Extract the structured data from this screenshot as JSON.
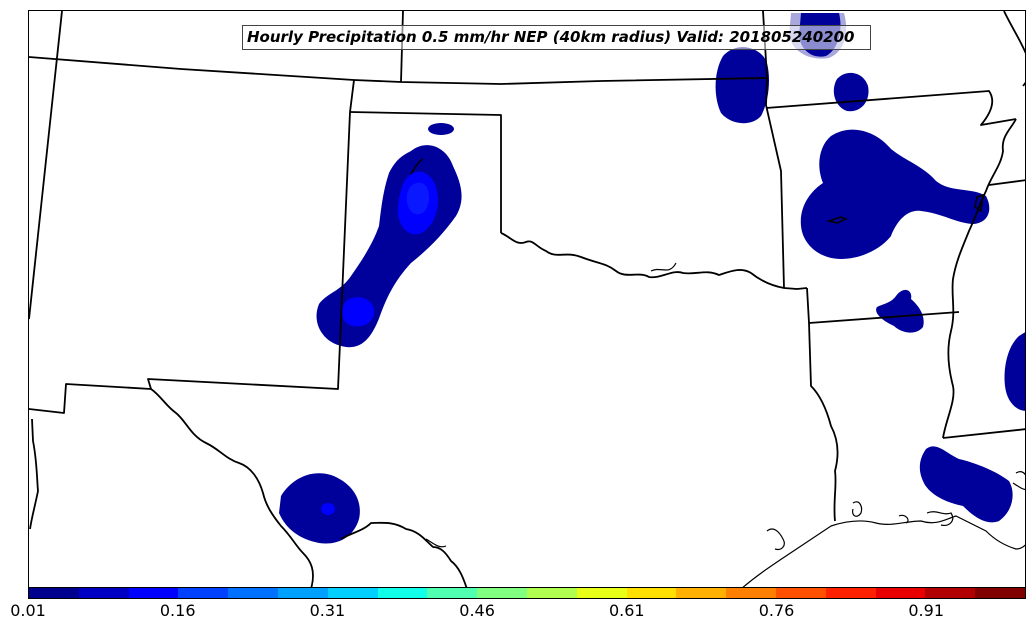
{
  "title": "Hourly Precipitation 0.5 mm/hr NEP (40km radius) Valid: 201805240200",
  "colorbar": {
    "colors": [
      "#00008f",
      "#0000c4",
      "#0000ff",
      "#0040ff",
      "#0070ff",
      "#00a0ff",
      "#00d0ff",
      "#10ffe8",
      "#50ffb0",
      "#80ff80",
      "#b0ff50",
      "#e8ff18",
      "#ffe000",
      "#ffb000",
      "#ff8000",
      "#ff5000",
      "#ff2000",
      "#e80000",
      "#b00000",
      "#800000"
    ],
    "ticks": [
      "0.01",
      "0.16",
      "0.31",
      "0.46",
      "0.61",
      "0.76",
      "0.91"
    ],
    "min": 0.01,
    "max": 1.0
  },
  "precip_colors": {
    "low": "#00009a",
    "mid": "#0000ff",
    "core": "#0a18ff",
    "faded": "#a8a8dd"
  }
}
